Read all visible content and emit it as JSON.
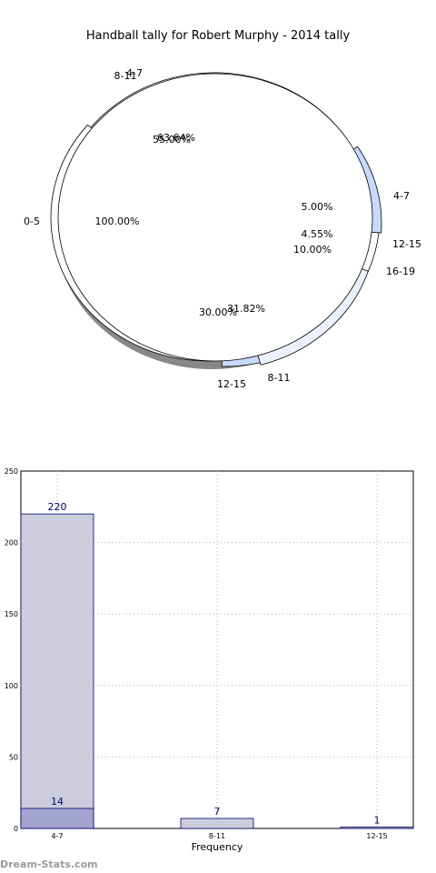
{
  "chart_data": [
    {
      "type": "pie",
      "title": "Handball tally for Robert Murphy - 2014 tally",
      "layers": [
        {
          "slices": [
            {
              "label": "4-7",
              "pct_text": "63.64%",
              "value": 63.64,
              "color": "#ffffff"
            },
            {
              "label": "12-15",
              "pct_text": "4.55%",
              "value": 4.55,
              "color": "#c6d9ff"
            },
            {
              "label": "8-11",
              "pct_text": "31.82%",
              "value": 31.82,
              "color": "#ebf1ff"
            }
          ]
        },
        {
          "slices": [
            {
              "label": "8-11",
              "pct_text": "55.00%",
              "value": 55.0,
              "color": "#ffffff"
            },
            {
              "label": "4-7",
              "pct_text": "5.00%",
              "value": 5.0,
              "color": "#ffffff"
            },
            {
              "label": "16-19",
              "pct_text": "10.00%",
              "value": 10.0,
              "color": "#c6d9ff"
            },
            {
              "label": "12-15",
              "pct_text": "30.00%",
              "value": 30.0,
              "color": "#ebf1ff"
            }
          ]
        },
        {
          "slices": [
            {
              "label": "0-5",
              "pct_text": "100.00%",
              "value": 100.0,
              "color": "#ffffff"
            }
          ]
        }
      ]
    },
    {
      "type": "bar",
      "xlabel": "Frequency",
      "ylabel": "",
      "ylim": [
        0,
        250
      ],
      "yticks": [
        "0",
        "50",
        "100",
        "150",
        "200",
        "250"
      ],
      "categories": [
        "4-7",
        "8-11",
        "12-15"
      ],
      "grid": true,
      "series": [
        {
          "values": [
            220,
            7,
            1
          ],
          "value_labels": [
            "220",
            "7",
            "1"
          ],
          "color": "#ccccdd",
          "edge": "#000066"
        },
        {
          "values": [
            14,
            0,
            0
          ],
          "value_labels": [
            "14",
            "",
            ""
          ],
          "color": "#a3a3cf",
          "edge": "#000066"
        }
      ]
    }
  ],
  "watermark": "Dream-Stats.com"
}
